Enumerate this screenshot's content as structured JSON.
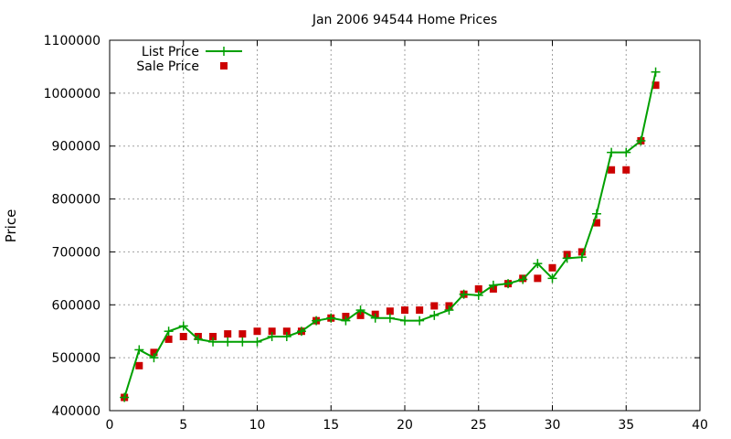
{
  "chart_data": {
    "type": "line",
    "title": "Jan 2006 94544 Home Prices",
    "xlabel": "",
    "ylabel": "Price",
    "xlim": [
      0,
      40
    ],
    "ylim": [
      400000,
      1100000
    ],
    "x_ticks": [
      0,
      5,
      10,
      15,
      20,
      25,
      30,
      35,
      40
    ],
    "y_ticks": [
      400000,
      500000,
      600000,
      700000,
      800000,
      900000,
      1000000,
      1100000
    ],
    "grid": true,
    "legend_position": "top-left",
    "series": [
      {
        "name": "List Price",
        "style": "line-plus",
        "color": "#00a000",
        "x": [
          1,
          2,
          3,
          4,
          5,
          6,
          7,
          8,
          9,
          10,
          11,
          12,
          13,
          14,
          15,
          16,
          17,
          18,
          19,
          20,
          21,
          22,
          23,
          24,
          25,
          26,
          27,
          28,
          29,
          30,
          31,
          32,
          33,
          34,
          35,
          36,
          37
        ],
        "values": [
          425000,
          515000,
          500000,
          550000,
          560000,
          535000,
          530000,
          530000,
          530000,
          530000,
          540000,
          540000,
          550000,
          570000,
          575000,
          570000,
          590000,
          575000,
          575000,
          570000,
          570000,
          580000,
          590000,
          620000,
          618000,
          637000,
          640000,
          648000,
          678000,
          650000,
          688000,
          690000,
          772000,
          888000,
          888000,
          910000,
          1040000
        ]
      },
      {
        "name": "Sale Price",
        "style": "square-marker",
        "color": "#cc0000",
        "x": [
          1,
          2,
          3,
          4,
          5,
          6,
          7,
          8,
          9,
          10,
          11,
          12,
          13,
          14,
          15,
          16,
          17,
          18,
          19,
          20,
          21,
          22,
          23,
          24,
          25,
          26,
          27,
          28,
          29,
          30,
          31,
          32,
          33,
          34,
          35,
          36,
          37
        ],
        "values": [
          425000,
          485000,
          510000,
          535000,
          540000,
          540000,
          540000,
          545000,
          545000,
          550000,
          550000,
          550000,
          550000,
          570000,
          575000,
          578000,
          580000,
          582000,
          588000,
          590000,
          590000,
          598000,
          598000,
          620000,
          630000,
          630000,
          640000,
          650000,
          650000,
          670000,
          695000,
          700000,
          755000,
          855000,
          855000,
          910000,
          1015000
        ]
      }
    ]
  }
}
